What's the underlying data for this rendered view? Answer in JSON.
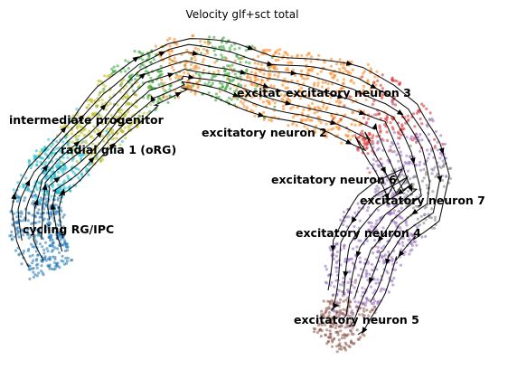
{
  "chart_data": {
    "type": "scatter",
    "title": "Velocity glf+sct total",
    "xlabel": "",
    "ylabel": "",
    "grid": false,
    "legend": "on data",
    "overlay": "velocity streamlines (arrows)",
    "clusters": [
      {
        "name": "cycling RG/IPC",
        "color": "#1f77b4"
      },
      {
        "name": "radial glia 1 (oRG)",
        "color": "#17becf"
      },
      {
        "name": "intermediate progenitor",
        "color": "#bcbd22"
      },
      {
        "name": "excitatory neuron 1",
        "display_label": "excitat",
        "color": "#ff9896"
      },
      {
        "name": "excitatory neuron 2",
        "color": "#2ca02c"
      },
      {
        "name": "excitatory neuron 3",
        "color": "#ff7f0e"
      },
      {
        "name": "excitatory neuron 4",
        "color": "#9467bd"
      },
      {
        "name": "excitatory neuron 5",
        "color": "#8c564b"
      },
      {
        "name": "excitatory neuron 6",
        "color": "#9e9e9e"
      },
      {
        "name": "excitatory neuron 7",
        "color": "#7f7f7f"
      },
      {
        "name": "",
        "color": "#d62728"
      }
    ]
  }
}
